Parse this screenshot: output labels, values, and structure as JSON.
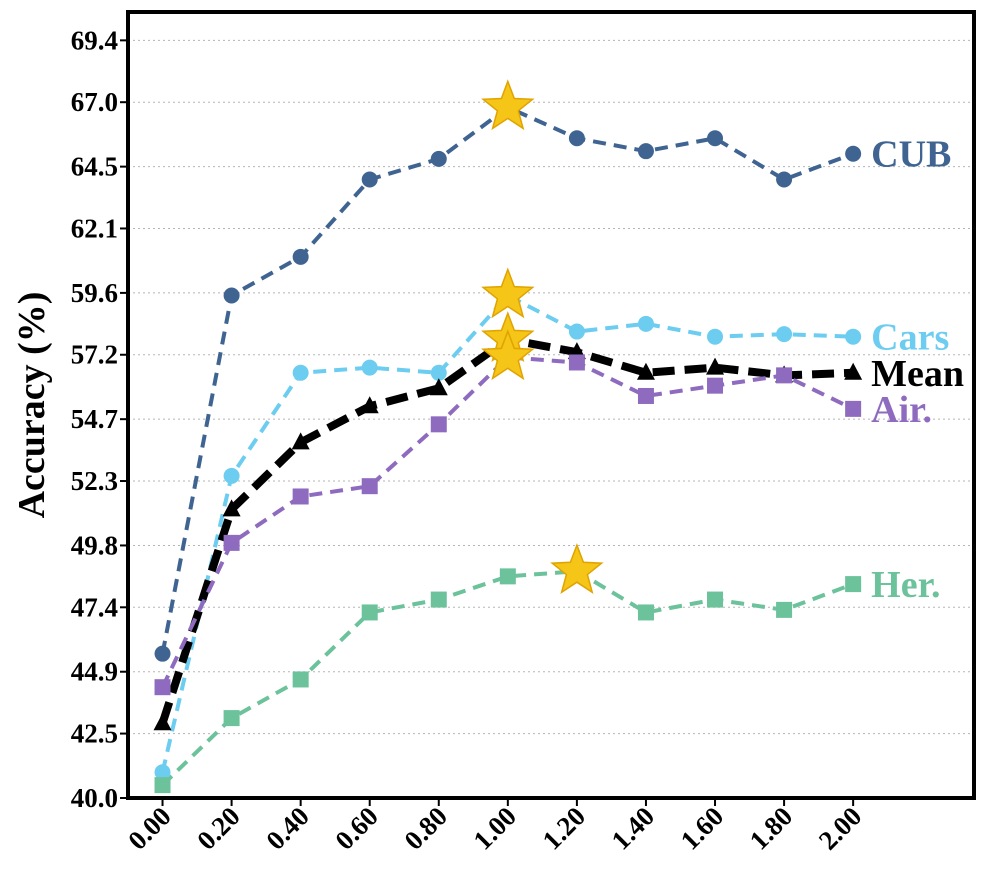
{
  "chart_data": {
    "type": "line",
    "title": "",
    "xlabel": "",
    "ylabel": "Accuracy (%)",
    "x": [
      0.0,
      0.2,
      0.4,
      0.6,
      0.8,
      1.0,
      1.2,
      1.4,
      1.6,
      1.8,
      2.0
    ],
    "x_tick_labels": [
      "0.00",
      "0.20",
      "0.40",
      "0.60",
      "0.80",
      "1.00",
      "1.20",
      "1.40",
      "1.60",
      "1.80",
      "2.00"
    ],
    "y_ticks": [
      40.0,
      42.5,
      44.9,
      47.4,
      49.8,
      52.3,
      54.7,
      57.2,
      59.6,
      62.1,
      64.5,
      67.0,
      69.4
    ],
    "y_tick_labels": [
      "40.0",
      "42.5",
      "44.9",
      "47.4",
      "49.8",
      "52.3",
      "54.7",
      "57.2",
      "59.6",
      "62.1",
      "64.5",
      "67.0",
      "69.4"
    ],
    "ylim": [
      40.0,
      70.5
    ],
    "xlim": [
      -0.1,
      2.35
    ],
    "grid": "horizontal dotted",
    "series": [
      {
        "name": "CUB",
        "color": "#3f6491",
        "marker": "circle",
        "line": "dashed",
        "values": [
          45.6,
          59.5,
          61.0,
          64.0,
          64.8,
          66.8,
          65.6,
          65.1,
          65.6,
          64.0,
          65.0
        ],
        "best_index": 5
      },
      {
        "name": "Cars",
        "color": "#6ccdf0",
        "marker": "circle",
        "line": "dashed",
        "values": [
          41.0,
          52.5,
          56.5,
          56.7,
          56.5,
          59.5,
          58.1,
          58.4,
          57.9,
          58.0,
          57.9
        ],
        "best_index": 5
      },
      {
        "name": "Mean",
        "color": "#000000",
        "marker": "triangle",
        "line": "dashed-bold",
        "values": [
          42.9,
          51.2,
          53.8,
          55.2,
          55.9,
          57.8,
          57.3,
          56.5,
          56.7,
          56.4,
          56.5
        ],
        "best_index": 5
      },
      {
        "name": "Air.",
        "color": "#8e6bbf",
        "marker": "square",
        "line": "dashed",
        "values": [
          44.3,
          49.9,
          51.7,
          52.1,
          54.5,
          57.1,
          56.9,
          55.6,
          56.0,
          56.4,
          55.1
        ],
        "best_index": 5
      },
      {
        "name": "Her.",
        "color": "#6cc29b",
        "marker": "square",
        "line": "dashed",
        "values": [
          40.5,
          43.1,
          44.6,
          47.2,
          47.7,
          48.6,
          48.8,
          47.2,
          47.7,
          47.3,
          48.3
        ],
        "best_index": 6
      }
    ],
    "highlight_color": "#f5c518",
    "highlight_stroke": "#e0a300"
  }
}
